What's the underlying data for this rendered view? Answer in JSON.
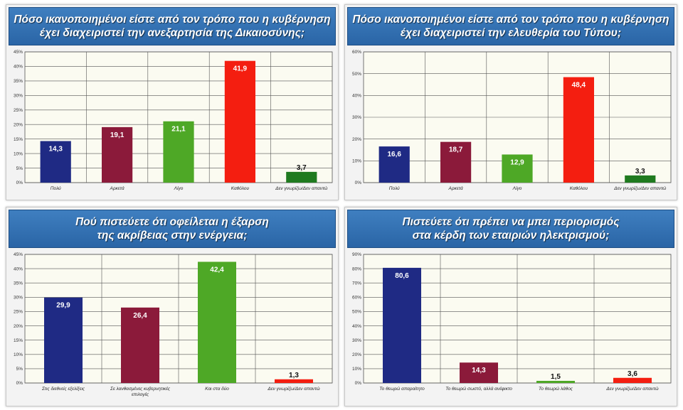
{
  "colors": {
    "navy": "#1f2a84",
    "maroon": "#8b1a3a",
    "green": "#4ea826",
    "red": "#f41e10"
  },
  "chart_data": [
    {
      "type": "bar",
      "title": "Πόσο ικανοποιημένοι είστε από τον τρόπο που η κυβέρνηση\nέχει διαχειριστεί την ανεξαρτησία της Δικαιοσύνης;",
      "categories": [
        "Πολύ",
        "Αρκετά",
        "Λίγο",
        "Καθόλου",
        "Δεν γνωρίζω/Δεν απαντώ"
      ],
      "values": [
        14.3,
        19.1,
        21.1,
        41.9,
        3.7
      ],
      "value_labels": [
        "14,3",
        "19,1",
        "21,1",
        "41,9",
        "3,7"
      ],
      "colors": [
        "#1f2a84",
        "#8b1a3a",
        "#4ea826",
        "#f41e10",
        "#1f7a1f"
      ],
      "ylim": [
        0,
        45
      ],
      "yticks": [
        "0%",
        "5%",
        "10%",
        "15%",
        "20%",
        "25%",
        "30%",
        "35%",
        "40%",
        "45%"
      ],
      "grid": true
    },
    {
      "type": "bar",
      "title": "Πόσο ικανοποιημένοι είστε από τον τρόπο που η κυβέρνηση\nέχει διαχειριστεί την ελευθερία του Τύπου;",
      "categories": [
        "Πολύ",
        "Αρκετά",
        "Λίγο",
        "Καθόλου",
        "Δεν γνωρίζω/Δεν απαντώ"
      ],
      "values": [
        16.6,
        18.7,
        12.9,
        48.4,
        3.3
      ],
      "value_labels": [
        "16,6",
        "18,7",
        "12,9",
        "48,4",
        "3,3"
      ],
      "colors": [
        "#1f2a84",
        "#8b1a3a",
        "#4ea826",
        "#f41e10",
        "#1f7a1f"
      ],
      "ylim": [
        0,
        60
      ],
      "yticks": [
        "0%",
        "10%",
        "20%",
        "30%",
        "40%",
        "50%",
        "60%"
      ],
      "grid": true
    },
    {
      "type": "bar",
      "title": "Πού πιστεύετε ότι οφείλεται η έξαρση\nτης ακρίβειας στην ενέργεια;",
      "categories": [
        "Στις διεθνείς εξελίξεις",
        "Σε λανθασμένες κυβερνητικές επιλογές",
        "Και στα δύο",
        "Δεν γνωρίζω/Δεν απαντώ"
      ],
      "values": [
        29.9,
        26.4,
        42.4,
        1.3
      ],
      "value_labels": [
        "29,9",
        "26,4",
        "42,4",
        "1,3"
      ],
      "colors": [
        "#1f2a84",
        "#8b1a3a",
        "#4ea826",
        "#f41e10"
      ],
      "ylim": [
        0,
        45
      ],
      "yticks": [
        "0%",
        "5%",
        "10%",
        "15%",
        "20%",
        "25%",
        "30%",
        "35%",
        "40%",
        "45%"
      ],
      "grid": true
    },
    {
      "type": "bar",
      "title": "Πιστεύετε ότι πρέπει να μπει περιορισμός\nστα κέρδη των εταιριών ηλεκτρισμού;",
      "categories": [
        "Το θεωρώ απαραίτητο",
        "Το θεωρώ σωστό, αλλά ανέφικτο",
        "Το θεωρώ λάθος",
        "Δεν γνωρίζω/Δεν απαντώ"
      ],
      "values": [
        80.6,
        14.3,
        1.5,
        3.6
      ],
      "value_labels": [
        "80,6",
        "14,3",
        "1,5",
        "3,6"
      ],
      "colors": [
        "#1f2a84",
        "#8b1a3a",
        "#4ea826",
        "#f41e10"
      ],
      "ylim": [
        0,
        90
      ],
      "yticks": [
        "0%",
        "10%",
        "20%",
        "30%",
        "40%",
        "50%",
        "60%",
        "70%",
        "80%",
        "90%"
      ],
      "grid": true
    }
  ]
}
